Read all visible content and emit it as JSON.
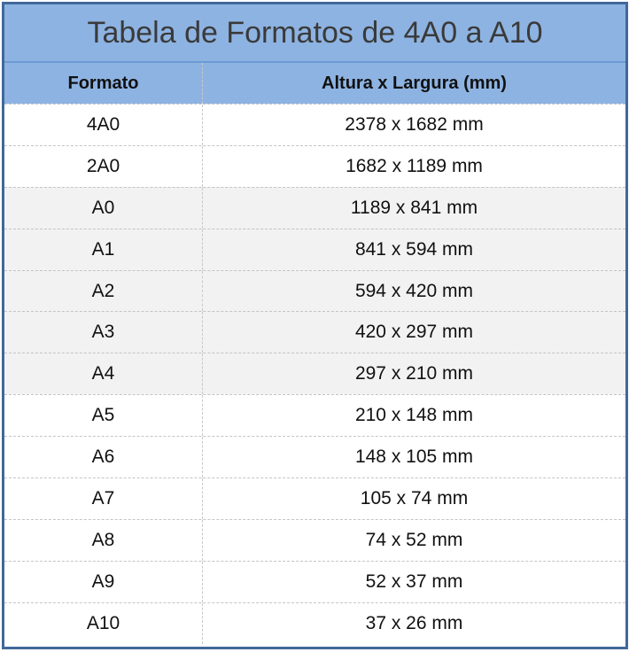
{
  "title": "Tabela de Formatos de 4A0 a A10",
  "headers": [
    "Formato",
    "Altura x Largura (mm)"
  ],
  "colors": {
    "header_bg": "#8db3e2",
    "border": "#41689a",
    "shaded_row": "#f2f2f2"
  },
  "rows": [
    {
      "format": "4A0",
      "size": "2378 x 1682 mm",
      "shaded": false
    },
    {
      "format": "2A0",
      "size": "1682 x 1189 mm",
      "shaded": false
    },
    {
      "format": "A0",
      "size": "1189 x 841 mm",
      "shaded": true
    },
    {
      "format": "A1",
      "size": "841 x 594 mm",
      "shaded": true
    },
    {
      "format": "A2",
      "size": "594 x 420 mm",
      "shaded": true
    },
    {
      "format": "A3",
      "size": "420 x 297 mm",
      "shaded": true
    },
    {
      "format": "A4",
      "size": "297 x 210 mm",
      "shaded": true
    },
    {
      "format": "A5",
      "size": "210 x 148 mm",
      "shaded": false
    },
    {
      "format": "A6",
      "size": "148 x 105 mm",
      "shaded": false
    },
    {
      "format": "A7",
      "size": "105 x 74 mm",
      "shaded": false
    },
    {
      "format": "A8",
      "size": "74 x 52 mm",
      "shaded": false
    },
    {
      "format": "A9",
      "size": "52 x 37 mm",
      "shaded": false
    },
    {
      "format": "A10",
      "size": "37 x 26 mm",
      "shaded": false
    }
  ]
}
